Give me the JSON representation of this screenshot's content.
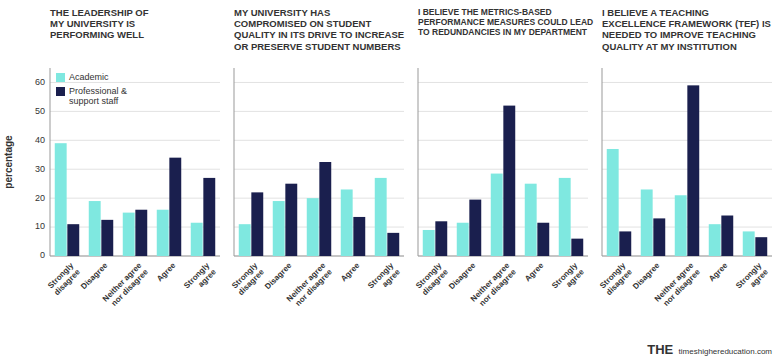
{
  "chart_data": [
    {
      "type": "bar",
      "title": "THE LEADERSHIP OF\nMY UNIVERSITY IS\nPERFORMING WELL",
      "ylabel": "percentage",
      "categories": [
        "Strongly\ndisagree",
        "Disagree",
        "Neither agree\nnor disagree",
        "Agree",
        "Strongly\nagree"
      ],
      "series": [
        {
          "name": "Academic",
          "color": "#7fe8e0",
          "values": [
            39,
            19,
            15,
            16,
            11.5
          ]
        },
        {
          "name": "Professional &\nsupport staff",
          "color": "#1a1f4e",
          "values": [
            11,
            12.5,
            16,
            34,
            27
          ]
        }
      ],
      "ylim": [
        0,
        65
      ],
      "yticks": [
        0,
        10,
        20,
        30,
        40,
        50,
        60
      ],
      "grid": true,
      "legend": "upper left"
    },
    {
      "type": "bar",
      "title": "MY UNIVERSITY HAS\nCOMPROMISED ON STUDENT\nQUALITY IN ITS DRIVE TO INCREASE\nOR PRESERVE STUDENT NUMBERS",
      "categories": [
        "Strongly\ndisagree",
        "Disagree",
        "Neither agree\nnor disagree",
        "Agree",
        "Strongly\nagree"
      ],
      "series": [
        {
          "color": "#7fe8e0",
          "values": [
            11,
            19,
            20,
            23,
            27
          ]
        },
        {
          "color": "#1a1f4e",
          "values": [
            22,
            25,
            32.5,
            13.5,
            8
          ]
        }
      ],
      "ylim": [
        0,
        65
      ],
      "yticks": [
        0,
        10,
        20,
        30,
        40,
        50,
        60
      ],
      "grid": true,
      "tick_labels": "x"
    },
    {
      "type": "bar",
      "title": "I BELIEVE THE METRICS-BASED\nPERFORMANCE MEASURES COULD LEAD\nTO REDUNDANCIES IN MY DEPARTMENT",
      "categories": [
        "Strongly\ndisagree",
        "Disagree",
        "Neither agree\nnor disagree",
        "Agree",
        "Strongly\nagree"
      ],
      "series": [
        {
          "color": "#7fe8e0",
          "values": [
            9,
            11.5,
            28.5,
            25,
            27
          ]
        },
        {
          "color": "#1a1f4e",
          "values": [
            12,
            19.5,
            52,
            11.5,
            6
          ]
        }
      ],
      "ylim": [
        0,
        65
      ],
      "yticks": [
        0,
        10,
        20,
        30,
        40,
        50,
        60
      ],
      "grid": true,
      "tick_labels": "x"
    },
    {
      "type": "bar",
      "title": "I BELIEVE A TEACHING\nEXCELLENCE FRAMEWORK (TEF) IS\nNEEDED TO IMPROVE TEACHING\nQUALITY AT MY INSTITUTION",
      "categories": [
        "Strongly\ndisagree",
        "Disagree",
        "Neither agree\nnor disagree",
        "Agree",
        "Strongly\nagree"
      ],
      "series": [
        {
          "color": "#7fe8e0",
          "values": [
            37,
            23,
            21,
            11,
            8.5
          ]
        },
        {
          "color": "#1a1f4e",
          "values": [
            8.5,
            13,
            59,
            14,
            6.5
          ]
        }
      ],
      "ylim": [
        0,
        65
      ],
      "yticks": [
        0,
        10,
        20,
        30,
        40,
        50,
        60
      ],
      "grid": true,
      "tick_labels": "x",
      "annotations": [
        "THE",
        "timeshighereducation.com"
      ]
    }
  ]
}
